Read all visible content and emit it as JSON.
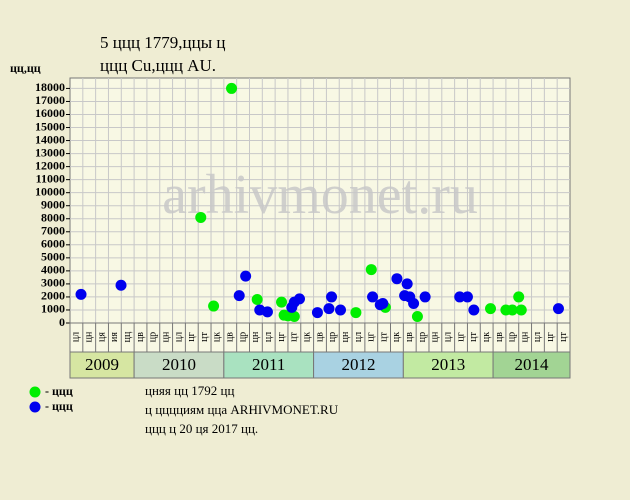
{
  "chart_data": {
    "type": "scatter",
    "title": "5 ццц 1779,ццы ц",
    "subtitle": "ццц Cu,ццц AU.",
    "y_label": "цц,цц",
    "watermark": "arhivmonet.ru",
    "categories": [
      "цл",
      "цн",
      "ця",
      "ия",
      "цц",
      "цв",
      "цр",
      "цн",
      "цл",
      "цг",
      "цт",
      "цк",
      "цв",
      "цр",
      "цн",
      "цл",
      "цг",
      "цт",
      "цк",
      "цв",
      "цр",
      "цн",
      "цл",
      "цг",
      "цт",
      "цк",
      "цв",
      "цр",
      "цн",
      "цл",
      "цг",
      "цт",
      "цк",
      "цв",
      "цр",
      "цн",
      "цл",
      "цг",
      "цт"
    ],
    "years": [
      {
        "label": "2009",
        "months": 5,
        "color": "#d6e6a2"
      },
      {
        "label": "2010",
        "months": 7,
        "color": "#c9dcc6"
      },
      {
        "label": "2011",
        "months": 7,
        "color": "#a9e2c0"
      },
      {
        "label": "2012",
        "months": 7,
        "color": "#a9d2e2"
      },
      {
        "label": "2013",
        "months": 7,
        "color": "#c2eaa2"
      },
      {
        "label": "2014",
        "months": 6,
        "color": "#a2d494"
      }
    ],
    "xlim": [
      0,
      39
    ],
    "ylim": [
      0,
      18800
    ],
    "yticks": [
      0,
      1000,
      2000,
      3000,
      4000,
      5000,
      6000,
      7000,
      8000,
      9000,
      10000,
      11000,
      12000,
      13000,
      14000,
      15000,
      16000,
      17000,
      18000
    ],
    "grid": true,
    "series": [
      {
        "name": "- ццц",
        "color": "#00ee00",
        "x": [
          10.2,
          11.2,
          12.6,
          14.6,
          16.5,
          16.7,
          17.0,
          17.5,
          22.3,
          23.5,
          24.6,
          27.1,
          32.8,
          34.0,
          34.5,
          35.0,
          35.2
        ],
        "values": [
          8100,
          1300,
          18000,
          1800,
          1600,
          600,
          550,
          500,
          800,
          4100,
          1200,
          500,
          1100,
          1000,
          1000,
          2000,
          1000
        ]
      },
      {
        "name": "- ццц",
        "color": "#0000ee",
        "x": [
          0.86,
          3.98,
          13.2,
          13.7,
          14.8,
          15.4,
          17.3,
          17.5,
          17.9,
          19.3,
          20.2,
          20.4,
          21.1,
          23.6,
          24.2,
          24.4,
          25.5,
          26.1,
          26.3,
          26.5,
          26.8,
          27.7,
          30.4,
          31.0,
          31.5,
          38.1
        ],
        "values": [
          2200,
          2900,
          2100,
          3600,
          1000,
          850,
          1200,
          1600,
          1850,
          800,
          1100,
          2000,
          1000,
          2000,
          1400,
          1500,
          3400,
          2100,
          3000,
          2000,
          1500,
          2000,
          2000,
          2000,
          1000,
          1100
        ]
      }
    ],
    "notes": [
      "цняя цц 1792 цц",
      "ц цццциям цца ARHIVMONET.RU",
      "ццц ц 20 ця 2017 цц."
    ]
  }
}
